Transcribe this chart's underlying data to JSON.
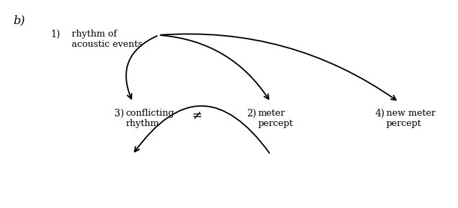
{
  "bg_color": "#ffffff",
  "label_b": "b)",
  "node1_label": "rhythm of\nacoustic events",
  "node2_label": "meter\npercept",
  "node3_label": "conflicting\nrhythm",
  "node4_label": "new meter\npercept",
  "num1": "1)",
  "num2": "2)",
  "num3": "3)",
  "num4": "4)",
  "neq_symbol": "≠",
  "font_size": 9.5,
  "font_size_num": 10,
  "font_size_b": 12,
  "text_color": "#000000",
  "arrow_color": "#000000",
  "linewidth": 1.4
}
